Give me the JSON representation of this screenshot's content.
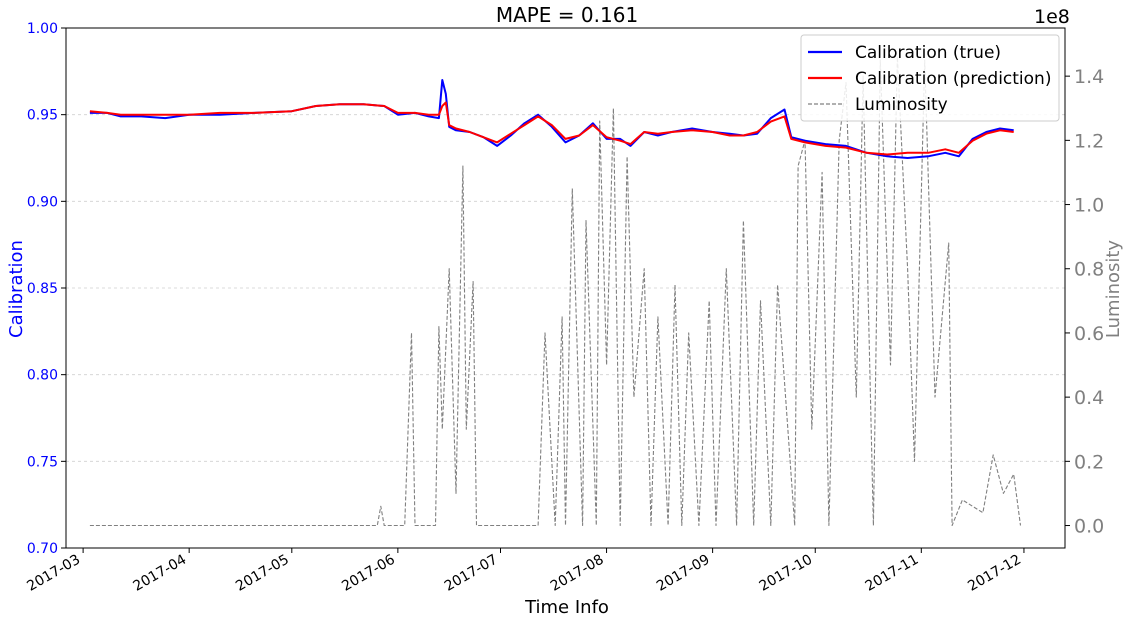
{
  "chart_data": {
    "type": "line",
    "title": "MAPE = 0.161",
    "xlabel": "Time Info",
    "ylabel_left": "Calibration",
    "ylabel_right": "Luminosity",
    "right_axis_exponent": "1e8",
    "ylim_left": [
      0.7,
      1.0
    ],
    "ylim_right": [
      -0.07,
      1.55
    ],
    "left_ticks": [
      "0.70",
      "0.75",
      "0.80",
      "0.85",
      "0.90",
      "0.95",
      "1.00"
    ],
    "right_ticks": [
      "0.0",
      "0.2",
      "0.4",
      "0.6",
      "0.8",
      "1.0",
      "1.2",
      "1.4"
    ],
    "x_ticks": [
      "2017-03",
      "2017-04",
      "2017-05",
      "2017-06",
      "2017-07",
      "2017-08",
      "2017-09",
      "2017-10",
      "2017-11",
      "2017-12"
    ],
    "grid": true,
    "legend_position": "top-right",
    "series": [
      {
        "name": "Calibration (true)",
        "color": "#0000ff",
        "axis": "left",
        "x": [
          "2017-03-03",
          "2017-03-08",
          "2017-03-12",
          "2017-03-18",
          "2017-03-25",
          "2017-04-01",
          "2017-04-10",
          "2017-04-20",
          "2017-05-01",
          "2017-05-08",
          "2017-05-15",
          "2017-05-22",
          "2017-05-28",
          "2017-06-01",
          "2017-06-06",
          "2017-06-10",
          "2017-06-13",
          "2017-06-14",
          "2017-06-15",
          "2017-06-16",
          "2017-06-18",
          "2017-06-22",
          "2017-06-26",
          "2017-06-30",
          "2017-07-04",
          "2017-07-08",
          "2017-07-12",
          "2017-07-16",
          "2017-07-20",
          "2017-07-24",
          "2017-07-28",
          "2017-08-01",
          "2017-08-05",
          "2017-08-08",
          "2017-08-12",
          "2017-08-16",
          "2017-08-20",
          "2017-08-26",
          "2017-09-01",
          "2017-09-06",
          "2017-09-10",
          "2017-09-14",
          "2017-09-18",
          "2017-09-22",
          "2017-09-24",
          "2017-09-28",
          "2017-10-04",
          "2017-10-10",
          "2017-10-16",
          "2017-10-22",
          "2017-10-28",
          "2017-11-03",
          "2017-11-08",
          "2017-11-12",
          "2017-11-16",
          "2017-11-20",
          "2017-11-24",
          "2017-11-28"
        ],
        "y": [
          0.951,
          0.951,
          0.949,
          0.949,
          0.948,
          0.95,
          0.95,
          0.951,
          0.952,
          0.955,
          0.956,
          0.956,
          0.955,
          0.95,
          0.951,
          0.949,
          0.948,
          0.97,
          0.962,
          0.943,
          0.941,
          0.94,
          0.937,
          0.932,
          0.938,
          0.945,
          0.95,
          0.943,
          0.934,
          0.938,
          0.945,
          0.936,
          0.936,
          0.932,
          0.94,
          0.938,
          0.94,
          0.942,
          0.94,
          0.939,
          0.938,
          0.939,
          0.948,
          0.953,
          0.937,
          0.935,
          0.933,
          0.932,
          0.928,
          0.926,
          0.925,
          0.926,
          0.928,
          0.926,
          0.936,
          0.94,
          0.942,
          0.941
        ]
      },
      {
        "name": "Calibration (prediction)",
        "color": "#ff0000",
        "axis": "left",
        "x": [
          "2017-03-03",
          "2017-03-08",
          "2017-03-12",
          "2017-03-18",
          "2017-03-25",
          "2017-04-01",
          "2017-04-10",
          "2017-04-20",
          "2017-05-01",
          "2017-05-08",
          "2017-05-15",
          "2017-05-22",
          "2017-05-28",
          "2017-06-01",
          "2017-06-06",
          "2017-06-10",
          "2017-06-13",
          "2017-06-14",
          "2017-06-15",
          "2017-06-16",
          "2017-06-18",
          "2017-06-22",
          "2017-06-26",
          "2017-06-30",
          "2017-07-04",
          "2017-07-08",
          "2017-07-12",
          "2017-07-16",
          "2017-07-20",
          "2017-07-24",
          "2017-07-28",
          "2017-08-01",
          "2017-08-05",
          "2017-08-08",
          "2017-08-12",
          "2017-08-16",
          "2017-08-20",
          "2017-08-26",
          "2017-09-01",
          "2017-09-06",
          "2017-09-10",
          "2017-09-14",
          "2017-09-18",
          "2017-09-22",
          "2017-09-24",
          "2017-09-28",
          "2017-10-04",
          "2017-10-10",
          "2017-10-16",
          "2017-10-22",
          "2017-10-28",
          "2017-11-03",
          "2017-11-08",
          "2017-11-12",
          "2017-11-16",
          "2017-11-20",
          "2017-11-24",
          "2017-11-28"
        ],
        "y": [
          0.952,
          0.951,
          0.95,
          0.95,
          0.95,
          0.95,
          0.951,
          0.951,
          0.952,
          0.955,
          0.956,
          0.956,
          0.955,
          0.951,
          0.951,
          0.95,
          0.95,
          0.955,
          0.957,
          0.944,
          0.942,
          0.94,
          0.937,
          0.934,
          0.939,
          0.944,
          0.949,
          0.944,
          0.936,
          0.938,
          0.944,
          0.937,
          0.935,
          0.933,
          0.94,
          0.939,
          0.94,
          0.941,
          0.94,
          0.938,
          0.938,
          0.94,
          0.946,
          0.949,
          0.936,
          0.934,
          0.932,
          0.931,
          0.928,
          0.927,
          0.928,
          0.928,
          0.93,
          0.928,
          0.935,
          0.939,
          0.941,
          0.94
        ]
      },
      {
        "name": "Luminosity",
        "color": "#808080",
        "axis": "right",
        "style": "dashed",
        "x": [
          "2017-03-03",
          "2017-05-26",
          "2017-05-27",
          "2017-05-28",
          "2017-06-03",
          "2017-06-05",
          "2017-06-06",
          "2017-06-08",
          "2017-06-12",
          "2017-06-13",
          "2017-06-14",
          "2017-06-16",
          "2017-06-18",
          "2017-06-20",
          "2017-06-21",
          "2017-06-23",
          "2017-06-24",
          "2017-06-26",
          "2017-06-28",
          "2017-06-30",
          "2017-07-12",
          "2017-07-14",
          "2017-07-17",
          "2017-07-19",
          "2017-07-20",
          "2017-07-22",
          "2017-07-25",
          "2017-07-26",
          "2017-07-29",
          "2017-07-30",
          "2017-08-01",
          "2017-08-03",
          "2017-08-05",
          "2017-08-07",
          "2017-08-09",
          "2017-08-12",
          "2017-08-14",
          "2017-08-16",
          "2017-08-19",
          "2017-08-21",
          "2017-08-23",
          "2017-08-25",
          "2017-08-28",
          "2017-08-31",
          "2017-09-02",
          "2017-09-05",
          "2017-09-08",
          "2017-09-10",
          "2017-09-13",
          "2017-09-15",
          "2017-09-18",
          "2017-09-20",
          "2017-09-25",
          "2017-09-26",
          "2017-09-28",
          "2017-09-30",
          "2017-10-03",
          "2017-10-05",
          "2017-10-08",
          "2017-10-10",
          "2017-10-13",
          "2017-10-15",
          "2017-10-18",
          "2017-10-20",
          "2017-10-23",
          "2017-10-25",
          "2017-10-28",
          "2017-10-30",
          "2017-11-02",
          "2017-11-05",
          "2017-11-09",
          "2017-11-10",
          "2017-11-13",
          "2017-11-16",
          "2017-11-19",
          "2017-11-22",
          "2017-11-25",
          "2017-11-28",
          "2017-11-30"
        ],
        "y": [
          0.0,
          0.0,
          0.06,
          0.0,
          0.0,
          0.6,
          0.0,
          0.0,
          0.0,
          0.62,
          0.3,
          0.8,
          0.1,
          1.12,
          0.3,
          0.76,
          0.0,
          0.0,
          0.0,
          0.0,
          0.0,
          0.6,
          0.0,
          0.65,
          0.0,
          1.05,
          0.0,
          0.95,
          0.0,
          1.26,
          0.5,
          1.3,
          0.0,
          1.15,
          0.4,
          0.8,
          0.0,
          0.65,
          0.0,
          0.75,
          0.0,
          0.6,
          0.0,
          0.7,
          0.0,
          0.8,
          0.0,
          0.95,
          0.0,
          0.7,
          0.0,
          0.75,
          0.0,
          1.12,
          1.2,
          0.3,
          1.1,
          0.0,
          1.2,
          1.38,
          0.4,
          1.4,
          0.0,
          1.45,
          0.5,
          1.46,
          0.8,
          0.2,
          1.45,
          0.4,
          0.88,
          0.0,
          0.08,
          0.06,
          0.04,
          0.22,
          0.1,
          0.16,
          0.0
        ]
      }
    ],
    "legend": [
      {
        "label": "Calibration (true)",
        "color": "#0000ff",
        "style": "solid"
      },
      {
        "label": "Calibration (prediction)",
        "color": "#ff0000",
        "style": "solid"
      },
      {
        "label": "Luminosity",
        "color": "#808080",
        "style": "dashed"
      }
    ]
  }
}
